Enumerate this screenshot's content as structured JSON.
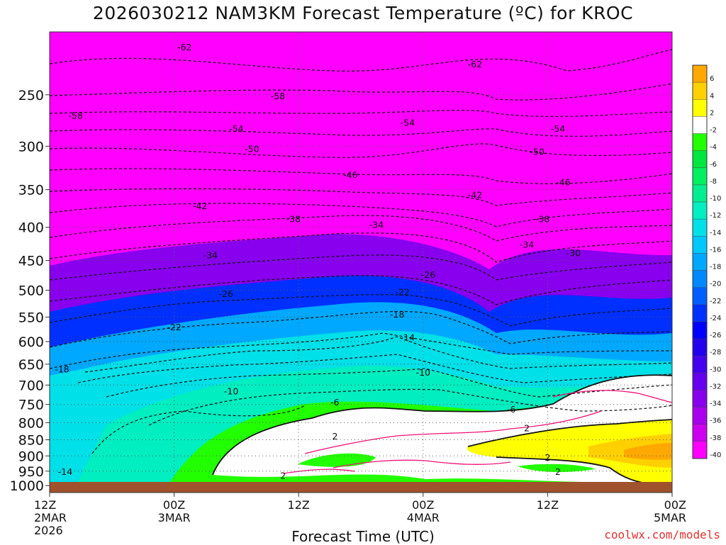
{
  "title": "2026030212 NAM3KM Forecast Temperature (ºC) for KROC",
  "xlabel": "Forecast Time (UTC)",
  "credit": "coolwx.com/models",
  "chart_data": {
    "type": "heatmap",
    "title": "2026030212 NAM3KM Forecast Temperature (ºC) for KROC",
    "xlabel": "Forecast Time (UTC)",
    "ylabel": "",
    "y_scale": "log",
    "y_inverted": true,
    "xlim_hours": [
      0,
      60
    ],
    "ylim": [
      1025,
      200
    ],
    "x_ticks": [
      {
        "hour": 0,
        "lines": [
          "12Z",
          "2MAR",
          "2026"
        ]
      },
      {
        "hour": 12,
        "lines": [
          "00Z",
          "3MAR"
        ]
      },
      {
        "hour": 24,
        "lines": [
          "12Z"
        ]
      },
      {
        "hour": 36,
        "lines": [
          "00Z",
          "4MAR"
        ]
      },
      {
        "hour": 48,
        "lines": [
          "12Z"
        ]
      },
      {
        "hour": 60,
        "lines": [
          "00Z",
          "5MAR"
        ]
      }
    ],
    "y_ticks": [
      250,
      300,
      350,
      400,
      450,
      500,
      550,
      600,
      650,
      700,
      750,
      800,
      850,
      900,
      950,
      1000
    ],
    "grid": true,
    "colorbar": {
      "position": "right",
      "levels": [
        6,
        4,
        2,
        -2,
        -4,
        -6,
        -8,
        -10,
        -12,
        -14,
        -16,
        -18,
        -20,
        -22,
        -24,
        -26,
        -28,
        -30,
        -32,
        -34,
        -36,
        -38,
        -40
      ],
      "colors": [
        "#ffa800",
        "#ffd000",
        "#ffff00",
        "#ffffff",
        "#22ff00",
        "#00e640",
        "#00f060",
        "#00ee90",
        "#00eec0",
        "#00e0e8",
        "#00c8ff",
        "#00a8ff",
        "#0088ff",
        "#0060ff",
        "#0030ff",
        "#0000ff",
        "#2200ee",
        "#4400ee",
        "#6600ee",
        "#8800ee",
        "#aa00ee",
        "#cc00ee",
        "#ff00ff"
      ]
    },
    "contour_labels": [
      {
        "t": 13,
        "p": 212,
        "v": "-62"
      },
      {
        "t": 41,
        "p": 225,
        "v": "-62"
      },
      {
        "t": 2.5,
        "p": 270,
        "v": "-58"
      },
      {
        "t": 22,
        "p": 252,
        "v": "-58"
      },
      {
        "t": 18,
        "p": 283,
        "v": "-54"
      },
      {
        "t": 34.5,
        "p": 277,
        "v": "-54"
      },
      {
        "t": 49,
        "p": 283,
        "v": "-54"
      },
      {
        "t": 19.5,
        "p": 304,
        "v": "-50"
      },
      {
        "t": 47,
        "p": 307,
        "v": "-50"
      },
      {
        "t": 29,
        "p": 333,
        "v": "-46"
      },
      {
        "t": 49.5,
        "p": 342,
        "v": "-46"
      },
      {
        "t": 41,
        "p": 358,
        "v": "-42"
      },
      {
        "t": 14.5,
        "p": 372,
        "v": "-42"
      },
      {
        "t": 23.5,
        "p": 390,
        "v": "-38"
      },
      {
        "t": 47.5,
        "p": 390,
        "v": "-38"
      },
      {
        "t": 31.5,
        "p": 398,
        "v": "-34"
      },
      {
        "t": 46,
        "p": 427,
        "v": "-34"
      },
      {
        "t": 15.5,
        "p": 443,
        "v": "-34"
      },
      {
        "t": 50.5,
        "p": 440,
        "v": "-30"
      },
      {
        "t": 36.5,
        "p": 475,
        "v": "-26"
      },
      {
        "t": 17,
        "p": 508,
        "v": "-26"
      },
      {
        "t": 34,
        "p": 505,
        "v": "-22"
      },
      {
        "t": 12,
        "p": 572,
        "v": "-22"
      },
      {
        "t": 33.5,
        "p": 547,
        "v": "-18"
      },
      {
        "t": 34.5,
        "p": 593,
        "v": "-14"
      },
      {
        "t": 1.2,
        "p": 664,
        "v": "-18"
      },
      {
        "t": 36,
        "p": 672,
        "v": "-10"
      },
      {
        "t": 17.5,
        "p": 718,
        "v": "-10"
      },
      {
        "t": 27.5,
        "p": 747,
        "v": "-6"
      },
      {
        "t": 44.5,
        "p": 766,
        "v": "-6"
      },
      {
        "t": 46,
        "p": 818,
        "v": "2"
      },
      {
        "t": 27.5,
        "p": 843,
        "v": "2"
      },
      {
        "t": 48,
        "p": 908,
        "v": "2"
      },
      {
        "t": 49,
        "p": 955,
        "v": "2"
      },
      {
        "t": 22.5,
        "p": 969,
        "v": "2"
      },
      {
        "t": 1.5,
        "p": 955,
        "v": "-14"
      }
    ]
  }
}
